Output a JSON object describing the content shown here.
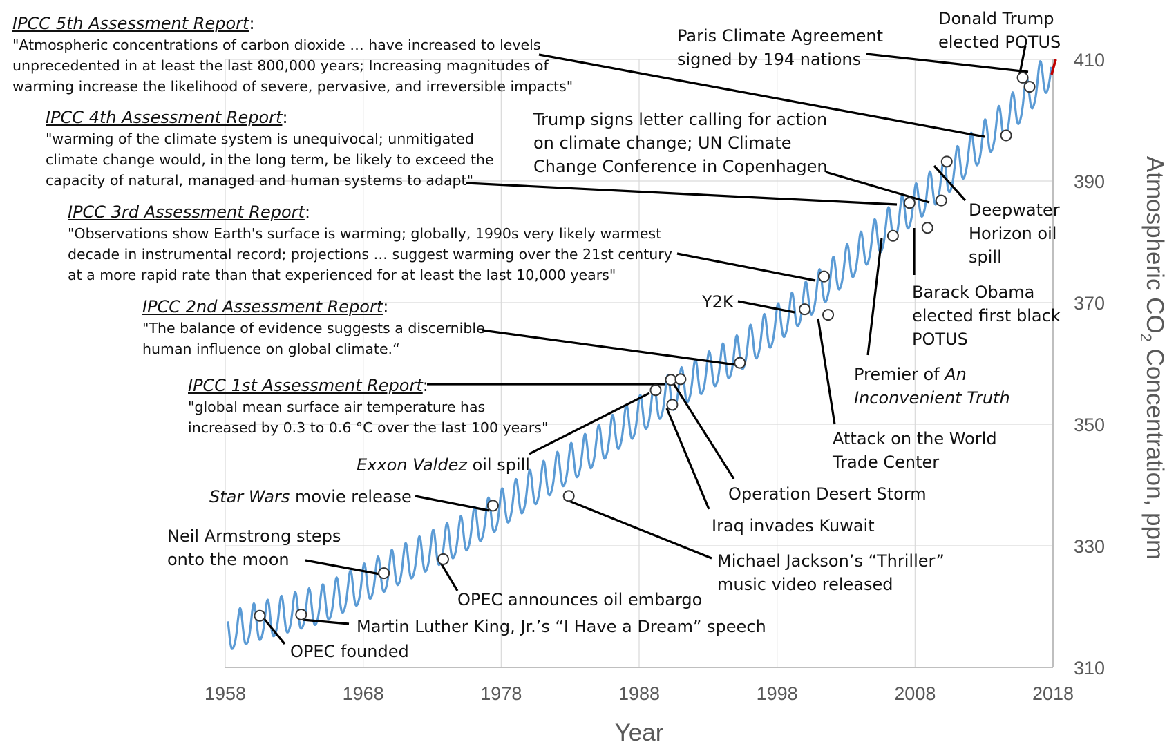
{
  "chart_data": {
    "type": "line",
    "title": "",
    "xlabel": "Year",
    "ylabel": "Atmospheric CO₂ Concentration, ppm",
    "ylabel_parts": {
      "pre": "Atmospheric CO",
      "sub": "2",
      "post": " Concentration, ppm"
    },
    "xlim": [
      1958,
      2018
    ],
    "ylim": [
      310,
      410
    ],
    "x_ticks": [
      "1958",
      "1968",
      "1978",
      "1988",
      "1998",
      "2008",
      "2018"
    ],
    "y_ticks": [
      "310",
      "330",
      "350",
      "370",
      "390",
      "410"
    ],
    "grid": {
      "vertical": true,
      "horizontal": true
    },
    "series": [
      {
        "color": "#5b9bd5",
        "note": "monthly readings with seasonal cycle (amplitude about 3 ppm)",
        "points": [
          [
            1958.2,
            315.5
          ],
          [
            1960,
            316.9
          ],
          [
            1965,
            320.0
          ],
          [
            1970,
            325.7
          ],
          [
            1975,
            331.2
          ],
          [
            1980,
            338.8
          ],
          [
            1985,
            346.2
          ],
          [
            1990,
            354.4
          ],
          [
            1995,
            360.9
          ],
          [
            2000,
            369.7
          ],
          [
            2005,
            380.0
          ],
          [
            2010,
            389.8
          ],
          [
            2015,
            400.8
          ],
          [
            2018,
            408.5
          ]
        ]
      },
      {
        "color": "#c00000",
        "note": "most recent readings",
        "points": [
          [
            2017.9,
            407.5
          ],
          [
            2018.0,
            408.4
          ],
          [
            2018.1,
            409.2
          ],
          [
            2018.2,
            410.0
          ]
        ]
      }
    ],
    "events": [
      {
        "x": 1960.5,
        "y": 318.5,
        "label": "OPEC founded"
      },
      {
        "x": 1963.5,
        "y": 318.7,
        "label": "Martin Luther King, Jr.’s “I Have a Dream” speech"
      },
      {
        "x": 1969.5,
        "y": 325.5,
        "label": "Neil Armstrong steps onto the moon"
      },
      {
        "x": 1973.8,
        "y": 327.8,
        "label": "OPEC announces oil embargo"
      },
      {
        "x": 1977.4,
        "y": 336.6,
        "label": "Star Wars movie release"
      },
      {
        "x": 1982.9,
        "y": 338.2,
        "label": "Michael Jackson’s “Thriller” music video released"
      },
      {
        "x": 1989.2,
        "y": 355.6,
        "label": "Exxon Valdez oil spill"
      },
      {
        "x": 1990.4,
        "y": 353.2,
        "label": "Iraq invades Kuwait"
      },
      {
        "x": 1990.3,
        "y": 357.3,
        "label": "IPCC 1st Assessment Report"
      },
      {
        "x": 1991.0,
        "y": 357.4,
        "label": "Operation Desert Storm"
      },
      {
        "x": 1995.3,
        "y": 360.1,
        "label": "IPCC 2nd Assessment Report"
      },
      {
        "x": 2000.0,
        "y": 368.9,
        "label": "Y2K"
      },
      {
        "x": 2001.4,
        "y": 374.3,
        "label": "IPCC 3rd Assessment Report"
      },
      {
        "x": 2001.7,
        "y": 368.0,
        "label": "Attack on the World Trade Center"
      },
      {
        "x": 2006.4,
        "y": 381.0,
        "label": "Premier of An Inconvenient Truth"
      },
      {
        "x": 2007.6,
        "y": 386.4,
        "label": "IPCC 4th Assessment Report"
      },
      {
        "x": 2008.9,
        "y": 382.3,
        "label": "Barack Obama elected first black POTUS"
      },
      {
        "x": 2009.9,
        "y": 386.8,
        "label": "Trump signs letter calling for action on climate change; UN Climate Change Conference in Copenhagen"
      },
      {
        "x": 2010.3,
        "y": 393.2,
        "label": "Deepwater Horizon oil spill"
      },
      {
        "x": 2014.6,
        "y": 397.5,
        "label": "IPCC 5th Assessment Report"
      },
      {
        "x": 2015.8,
        "y": 407.0,
        "label": "Paris Climate Agreement signed by 194 nations"
      },
      {
        "x": 2016.3,
        "y": 405.5,
        "label": "Donald Trump elected POTUS"
      }
    ]
  },
  "ipcc": {
    "r5": {
      "title": "IPCC 5th Assessment Report",
      "sep": ":",
      "quote": [
        "\"Atmospheric concentrations of carbon dioxide … have increased to levels",
        "unprecedented in at least the last 800,000 years; Increasing magnitudes of",
        "warming increase the likelihood of severe, pervasive, and irreversible impacts\""
      ]
    },
    "r4": {
      "title": "IPCC 4th Assessment Report",
      "sep": ":",
      "quote": [
        "\"warming of the climate system is unequivocal; unmitigated",
        "climate change would, in the long term, be likely to exceed the",
        "capacity of natural, managed and human systems to adapt\""
      ]
    },
    "r3": {
      "title": "IPCC 3rd Assessment Report",
      "sep": ":",
      "quote": [
        "\"Observations show Earth's surface is warming; globally, 1990s very likely warmest",
        "decade in instrumental record; projections … suggest warming over the 21st century",
        "at a more rapid rate than that experienced for at least the last 10,000 years\""
      ]
    },
    "r2": {
      "title": "IPCC 2nd Assessment Report",
      "sep": ":",
      "quote": [
        "\"The balance of evidence suggests a discernible",
        "human influence on global climate.“"
      ]
    },
    "r1": {
      "title": "IPCC 1st Assessment Report",
      "sep": ":",
      "quote": [
        "\"global mean surface air temperature has",
        "increased by 0.3 to 0.6 °C over the last 100 years\""
      ]
    }
  },
  "labels": {
    "trump_potus": [
      "Donald Trump",
      "elected POTUS"
    ],
    "paris": [
      "Paris Climate Agreement",
      "signed by 194 nations"
    ],
    "copenhagen": [
      "Trump signs letter calling for action",
      "on climate change; UN Climate",
      "Change Conference in Copenhagen"
    ],
    "deepwater": [
      "Deepwater",
      "Horizon oil",
      "spill"
    ],
    "obama": [
      "Barack Obama",
      "elected first black",
      "POTUS"
    ],
    "y2k": "Y2K",
    "inconvenient": {
      "pre": "Premier of ",
      "italic1": "An",
      "line2": "Inconvenient Truth"
    },
    "wtc": [
      "Attack on the World",
      "Trade Center"
    ],
    "desert_storm": "Operation Desert Storm",
    "kuwait": "Iraq invades Kuwait",
    "thriller": [
      "Michael Jackson’s “Thriller”",
      "music video released"
    ],
    "exxon": {
      "italic": "Exxon Valdez",
      "rest": " oil spill"
    },
    "star_wars": {
      "italic": "Star Wars",
      "rest": " movie release"
    },
    "armstrong": [
      "Neil Armstrong steps",
      "onto the moon"
    ],
    "opec_embargo": "OPEC announces oil embargo",
    "mlk": "Martin Luther King, Jr.’s “I Have a Dream” speech",
    "opec_founded": "OPEC founded"
  }
}
